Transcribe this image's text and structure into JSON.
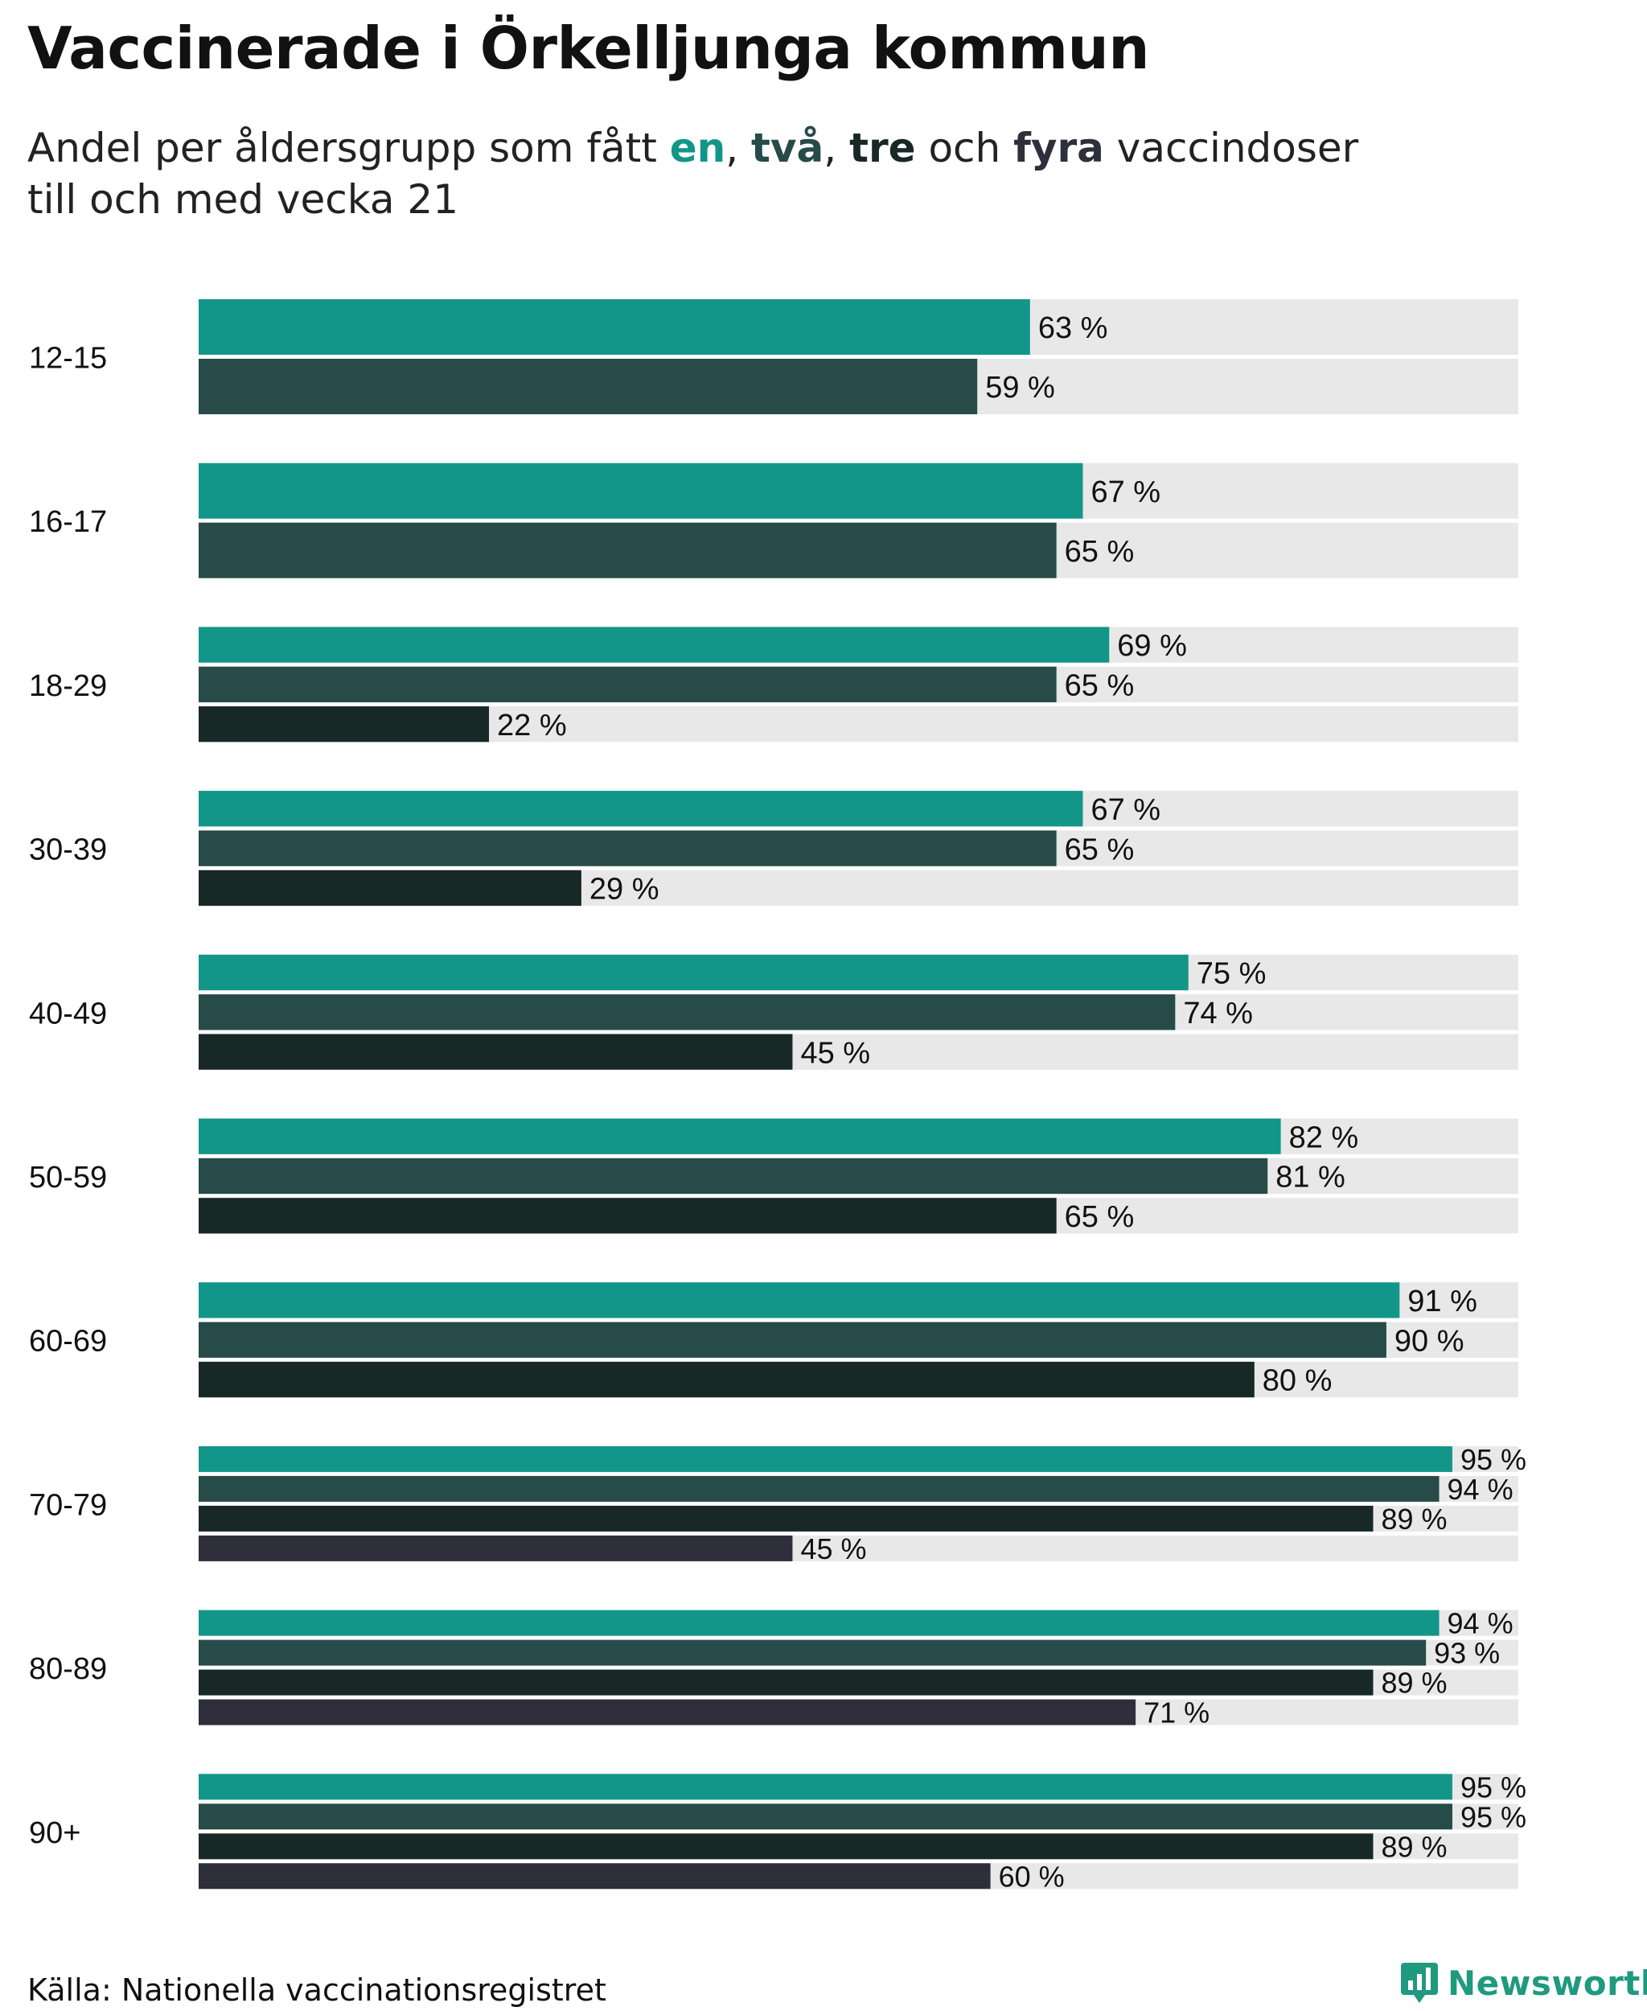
{
  "title": "Vaccinerade i Örkelljunga kommun",
  "subtitle": {
    "part1": "Andel per åldersgrupp som fått ",
    "dose1": "en",
    "sep1": ", ",
    "dose2": "två",
    "sep2": ", ",
    "dose3": "tre",
    "part2": " och ",
    "dose4": "fyra",
    "part3": " vaccindoser",
    "line2": "till och med vecka 21"
  },
  "source": "Källa: Nationella vaccinationsregistret",
  "brand": {
    "name": "Newsworthy",
    "icon": "newsworthy-logo-icon",
    "color": "#1f9a7e"
  },
  "colors": {
    "dose1": "#13968a",
    "dose2": "#264b48",
    "dose3": "#182826",
    "dose4": "#2e2f3a",
    "track": "#e8e8e8"
  },
  "chart_data": {
    "type": "bar",
    "orientation": "horizontal",
    "xlim": [
      0,
      100
    ],
    "value_suffix": " %",
    "grid": false,
    "categories": [
      "12-15",
      "16-17",
      "18-29",
      "30-39",
      "40-49",
      "50-59",
      "60-69",
      "70-79",
      "80-89",
      "90+"
    ],
    "series": [
      {
        "name": "en",
        "values": [
          63,
          67,
          69,
          67,
          75,
          82,
          91,
          95,
          94,
          95
        ]
      },
      {
        "name": "två",
        "values": [
          59,
          65,
          65,
          65,
          74,
          81,
          90,
          94,
          93,
          95
        ]
      },
      {
        "name": "tre",
        "values": [
          null,
          null,
          22,
          29,
          45,
          65,
          80,
          89,
          89,
          89
        ]
      },
      {
        "name": "fyra",
        "values": [
          null,
          null,
          null,
          null,
          null,
          null,
          null,
          45,
          71,
          60
        ]
      }
    ]
  }
}
